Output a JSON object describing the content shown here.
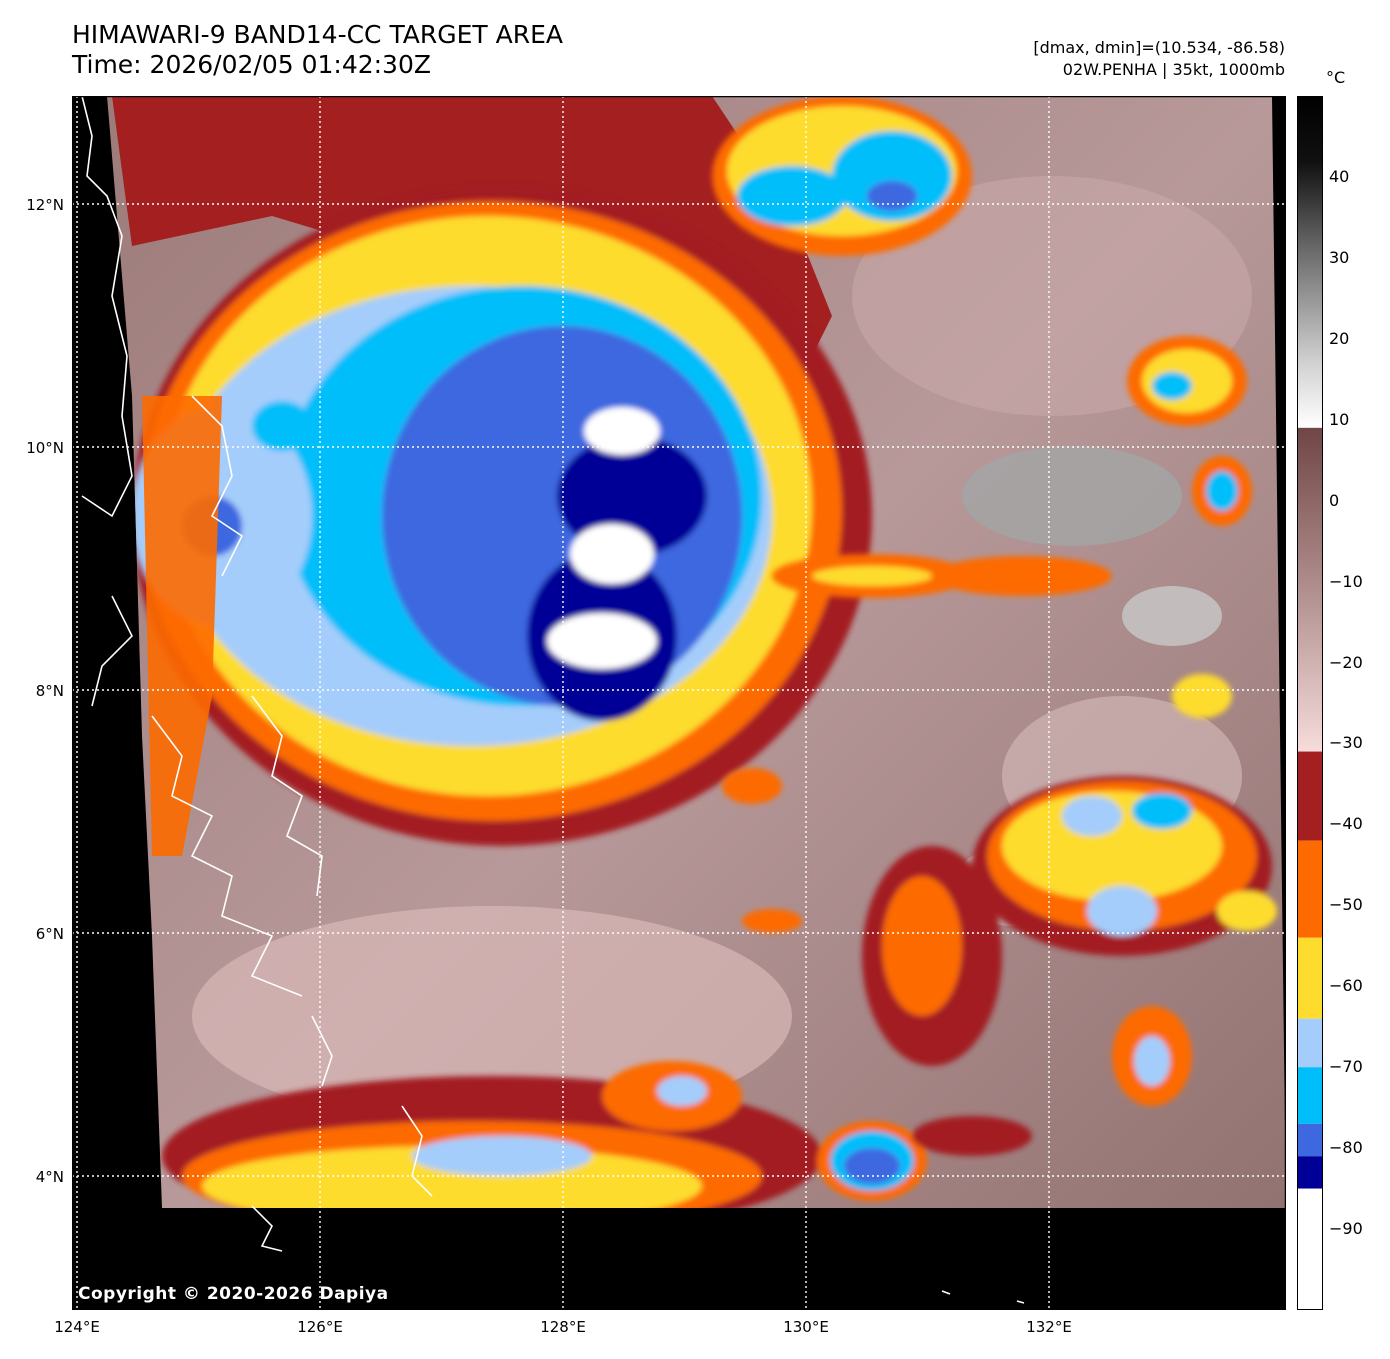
{
  "header": {
    "title_line1": "HIMAWARI-9 BAND14-CC TARGET AREA",
    "title_line2": "Time: 2026/02/05 01:42:30Z",
    "info_line1": "[dmax, dmin]=(10.534, -86.58)",
    "info_line2": "02W.PENHA | 35kt, 1000mb"
  },
  "map": {
    "lat_labels": [
      "12°N",
      "10°N",
      "8°N",
      "6°N",
      "4°N"
    ],
    "lon_labels": [
      "124°E",
      "126°E",
      "128°E",
      "130°E",
      "132°E"
    ],
    "copyright": "Copyright © 2020-2026 Dapiya"
  },
  "colorbar": {
    "unit": "°C",
    "tick_labels": [
      "40",
      "30",
      "20",
      "10",
      "0",
      "−10",
      "−20",
      "−30",
      "−40",
      "−50",
      "−60",
      "−70",
      "−80",
      "−90"
    ],
    "ticks": [
      40,
      30,
      20,
      10,
      0,
      -10,
      -20,
      -30,
      -40,
      -50,
      -60,
      -70,
      -80,
      -90
    ],
    "range": [
      -100,
      50
    ],
    "bands": [
      {
        "from": 50,
        "to": 9,
        "kind": "gray-gradient"
      },
      {
        "from": 9,
        "to": -31,
        "kind": "brown-pink-gradient"
      },
      {
        "from": -31,
        "to": -42,
        "color": "#a31f20"
      },
      {
        "from": -42,
        "to": -54,
        "color": "#fd6a00"
      },
      {
        "from": -54,
        "to": -64,
        "color": "#fddc2d"
      },
      {
        "from": -64,
        "to": -70,
        "color": "#a4cdfb"
      },
      {
        "from": -70,
        "to": -77,
        "color": "#00befa"
      },
      {
        "from": -77,
        "to": -81,
        "color": "#3d68e0"
      },
      {
        "from": -81,
        "to": -85,
        "color": "#000097"
      },
      {
        "from": -85,
        "to": -100,
        "color": "#ffffff"
      }
    ]
  }
}
